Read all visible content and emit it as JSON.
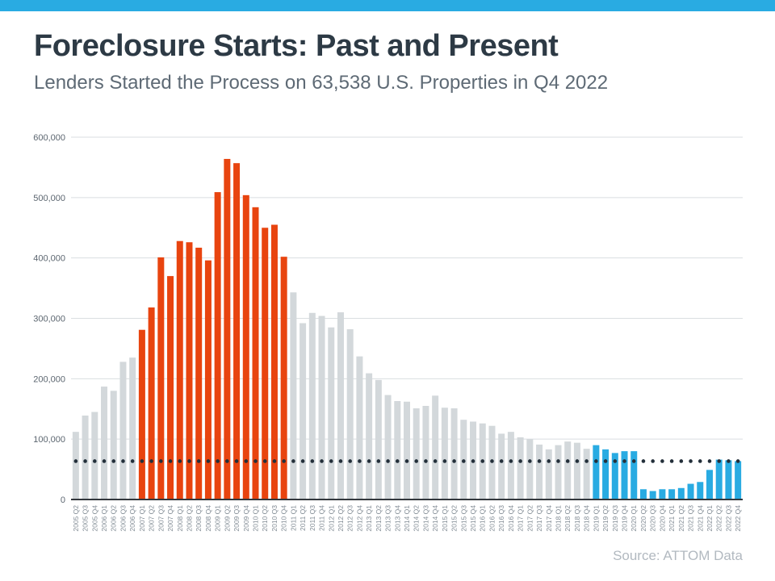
{
  "banner": {
    "color": "#29abe2"
  },
  "header": {
    "title": "Foreclosure Starts: Past and Present",
    "subtitle": "Lenders Started the Process on 63,538 U.S. Properties in Q4 2022"
  },
  "source": {
    "label": "Source: ATTOM Data"
  },
  "chart_data": {
    "type": "bar",
    "title": "Foreclosure Starts: Past and Present",
    "subtitle": "Lenders Started the Process on 63,538 U.S. Properties in Q4 2022",
    "xlabel": "",
    "ylabel": "",
    "ylim": [
      0,
      600000
    ],
    "ytick_step": 100000,
    "grid": true,
    "legend": "none",
    "categories": [
      "2005 Q2",
      "2005 Q3",
      "2005 Q4",
      "2006 Q1",
      "2006 Q2",
      "2006 Q3",
      "2006 Q4",
      "2007 Q1",
      "2007 Q2",
      "2007 Q3",
      "2007 Q4",
      "2008 Q1",
      "2008 Q2",
      "2008 Q3",
      "2008 Q4",
      "2009 Q1",
      "2009 Q2",
      "2009 Q3",
      "2009 Q4",
      "2010 Q1",
      "2010 Q2",
      "2010 Q3",
      "2010 Q4",
      "2011 Q1",
      "2011 Q2",
      "2011 Q3",
      "2011 Q4",
      "2012 Q1",
      "2012 Q2",
      "2012 Q3",
      "2012 Q4",
      "2013 Q1",
      "2013 Q2",
      "2013 Q3",
      "2013 Q4",
      "2014 Q1",
      "2014 Q2",
      "2014 Q3",
      "2014 Q4",
      "2015 Q1",
      "2015 Q2",
      "2015 Q3",
      "2015 Q4",
      "2016 Q1",
      "2016 Q2",
      "2016 Q3",
      "2016 Q4",
      "2017 Q1",
      "2017 Q2",
      "2017 Q3",
      "2017 Q4",
      "2018 Q1",
      "2018 Q2",
      "2018 Q3",
      "2018 Q4",
      "2019 Q1",
      "2019 Q2",
      "2019 Q3",
      "2019 Q4",
      "2020 Q1",
      "2020 Q2",
      "2020 Q3",
      "2020 Q4",
      "2021 Q1",
      "2021 Q2",
      "2021 Q3",
      "2021 Q4",
      "2022 Q1",
      "2022 Q2",
      "2022 Q3",
      "2022 Q4"
    ],
    "values": [
      112000,
      139000,
      145000,
      187000,
      180000,
      228000,
      235000,
      281000,
      318000,
      401000,
      370000,
      428000,
      426000,
      417000,
      396000,
      509000,
      564000,
      557000,
      504000,
      484000,
      450000,
      455000,
      402000,
      343000,
      292000,
      309000,
      304000,
      285000,
      310000,
      282000,
      237000,
      209000,
      198000,
      173000,
      163000,
      162000,
      151000,
      155000,
      172000,
      152000,
      151000,
      132000,
      129000,
      126000,
      122000,
      109000,
      112000,
      103000,
      100000,
      91000,
      83000,
      90000,
      96000,
      94000,
      84000,
      90000,
      83000,
      77000,
      80000,
      80000,
      17000,
      14000,
      17000,
      17000,
      19000,
      26000,
      29000,
      49000,
      66000,
      65000,
      63538
    ],
    "bar_groups": [
      "gray",
      "gray",
      "gray",
      "gray",
      "gray",
      "gray",
      "gray",
      "red",
      "red",
      "red",
      "red",
      "red",
      "red",
      "red",
      "red",
      "red",
      "red",
      "red",
      "red",
      "red",
      "red",
      "red",
      "red",
      "gray",
      "gray",
      "gray",
      "gray",
      "gray",
      "gray",
      "gray",
      "gray",
      "gray",
      "gray",
      "gray",
      "gray",
      "gray",
      "gray",
      "gray",
      "gray",
      "gray",
      "gray",
      "gray",
      "gray",
      "gray",
      "gray",
      "gray",
      "gray",
      "gray",
      "gray",
      "gray",
      "gray",
      "gray",
      "gray",
      "gray",
      "gray",
      "blue",
      "blue",
      "blue",
      "blue",
      "blue",
      "blue",
      "blue",
      "blue",
      "blue",
      "blue",
      "blue",
      "blue",
      "blue",
      "blue",
      "blue",
      "blue"
    ],
    "group_colors": {
      "gray": "#d3d8db",
      "red": "#e8440f",
      "blue": "#29abe2"
    },
    "reference_line": {
      "value": 63538,
      "style": "dotted",
      "color": "#232f3a"
    },
    "axis_colors": {
      "gridline": "#dadee1",
      "baseline": "#33383d",
      "ytick_text": "#5c6670",
      "xtick_text": "#828c95"
    }
  }
}
